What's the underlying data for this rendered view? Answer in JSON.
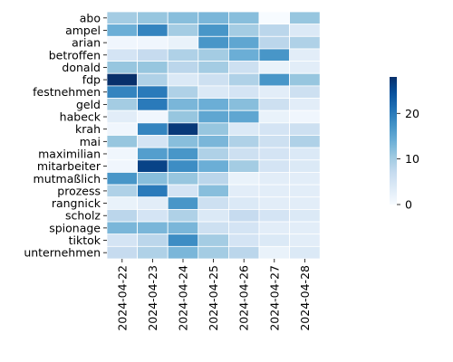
{
  "chart_data": {
    "type": "heatmap",
    "title": "",
    "xlabel": "",
    "ylabel": "",
    "x": [
      "2024-04-22",
      "2024-04-23",
      "2024-04-24",
      "2024-04-25",
      "2024-04-26",
      "2024-04-27",
      "2024-04-28"
    ],
    "y": [
      "abo",
      "ampel",
      "arian",
      "betroffen",
      "donald",
      "fdp",
      "festnehmen",
      "geld",
      "habeck",
      "krah",
      "mai",
      "maximilian",
      "mitarbeiter",
      "mutmaßlich",
      "prozess",
      "rangnick",
      "scholz",
      "spionage",
      "tiktok",
      "unternehmen"
    ],
    "values": [
      [
        10,
        11,
        12,
        13,
        12,
        0,
        11
      ],
      [
        14,
        19,
        10,
        17,
        10,
        8,
        4
      ],
      [
        1,
        1,
        2,
        17,
        15,
        8,
        9
      ],
      [
        5,
        7,
        9,
        10,
        14,
        17,
        3
      ],
      [
        11,
        11,
        8,
        10,
        6,
        2,
        3
      ],
      [
        28,
        9,
        4,
        6,
        9,
        17,
        11
      ],
      [
        19,
        20,
        9,
        4,
        5,
        3,
        6
      ],
      [
        10,
        20,
        13,
        14,
        12,
        6,
        3
      ],
      [
        3,
        1,
        11,
        15,
        15,
        2,
        1
      ],
      [
        1,
        19,
        27,
        11,
        4,
        5,
        6
      ],
      [
        11,
        5,
        12,
        13,
        9,
        6,
        9
      ],
      [
        1,
        16,
        17,
        9,
        6,
        5,
        4
      ],
      [
        1,
        26,
        18,
        14,
        10,
        5,
        4
      ],
      [
        17,
        12,
        11,
        8,
        2,
        3,
        3
      ],
      [
        9,
        20,
        5,
        12,
        3,
        3,
        3
      ],
      [
        2,
        3,
        17,
        6,
        4,
        3,
        3
      ],
      [
        8,
        5,
        9,
        4,
        7,
        5,
        4
      ],
      [
        13,
        13,
        13,
        6,
        5,
        3,
        3
      ],
      [
        5,
        8,
        18,
        10,
        5,
        4,
        3
      ],
      [
        7,
        9,
        13,
        10,
        8,
        2,
        4
      ]
    ],
    "colorbar": {
      "ticks": [
        0,
        10,
        20
      ],
      "min": 0,
      "max": 28,
      "colormap": "Blues"
    },
    "grid": false,
    "legend": "colorbar-right"
  }
}
